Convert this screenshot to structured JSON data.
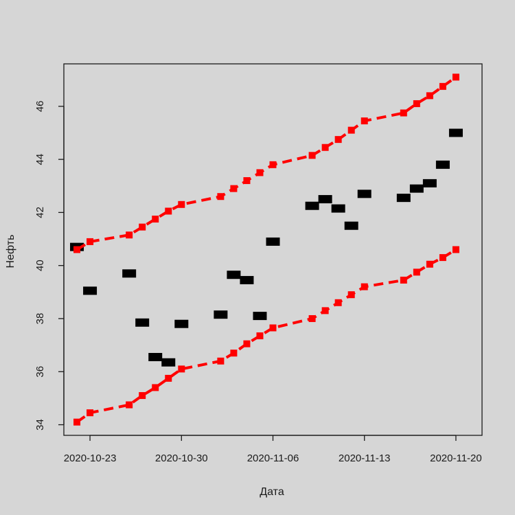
{
  "chart_data": {
    "type": "scatter",
    "title": "",
    "xlabel": "Дата",
    "ylabel": "Нефть",
    "xlim": [
      "2020-10-21",
      "2020-11-22"
    ],
    "ylim": [
      33.6,
      47.6
    ],
    "x_ticks": [
      "2020-10-23",
      "2020-10-30",
      "2020-11-06",
      "2020-11-13",
      "2020-11-20"
    ],
    "y_ticks": [
      34,
      36,
      38,
      40,
      42,
      44,
      46
    ],
    "grid": false,
    "legend": "none",
    "background_color": "#d6d6d6",
    "series": [
      {
        "marker": "filled-square",
        "color": "#000000",
        "x": [
          "2020-10-22",
          "2020-10-23",
          "2020-10-26",
          "2020-10-27",
          "2020-10-28",
          "2020-10-29",
          "2020-10-30",
          "2020-11-02",
          "2020-11-03",
          "2020-11-04",
          "2020-11-05",
          "2020-11-06",
          "2020-11-09",
          "2020-11-10",
          "2020-11-11",
          "2020-11-12",
          "2020-11-13",
          "2020-11-16",
          "2020-11-17",
          "2020-11-18",
          "2020-11-19",
          "2020-11-20"
        ],
        "y": [
          40.7,
          39.05,
          39.7,
          37.85,
          36.55,
          36.35,
          37.8,
          38.15,
          39.65,
          39.45,
          38.1,
          40.9,
          42.25,
          42.5,
          42.15,
          41.5,
          42.7,
          42.55,
          42.9,
          43.1,
          43.8,
          45.0
        ]
      },
      {
        "marker": "filled-square",
        "line": "dashed",
        "color": "#ff0000",
        "x": [
          "2020-10-22",
          "2020-10-23",
          "2020-10-26",
          "2020-10-27",
          "2020-10-28",
          "2020-10-29",
          "2020-10-30",
          "2020-11-02",
          "2020-11-03",
          "2020-11-04",
          "2020-11-05",
          "2020-11-06",
          "2020-11-09",
          "2020-11-10",
          "2020-11-11",
          "2020-11-12",
          "2020-11-13",
          "2020-11-16",
          "2020-11-17",
          "2020-11-18",
          "2020-11-19",
          "2020-11-20"
        ],
        "y": [
          40.6,
          40.9,
          41.15,
          41.45,
          41.75,
          42.05,
          42.3,
          42.6,
          42.9,
          43.2,
          43.5,
          43.8,
          44.15,
          44.45,
          44.75,
          45.1,
          45.45,
          45.75,
          46.1,
          46.4,
          46.75,
          47.1
        ]
      },
      {
        "marker": "filled-square",
        "line": "dashed",
        "color": "#ff0000",
        "x": [
          "2020-10-22",
          "2020-10-23",
          "2020-10-26",
          "2020-10-27",
          "2020-10-28",
          "2020-10-29",
          "2020-10-30",
          "2020-11-02",
          "2020-11-03",
          "2020-11-04",
          "2020-11-05",
          "2020-11-06",
          "2020-11-09",
          "2020-11-10",
          "2020-11-11",
          "2020-11-12",
          "2020-11-13",
          "2020-11-16",
          "2020-11-17",
          "2020-11-18",
          "2020-11-19",
          "2020-11-20"
        ],
        "y": [
          34.1,
          34.45,
          34.75,
          35.1,
          35.4,
          35.75,
          36.1,
          36.4,
          36.7,
          37.05,
          37.35,
          37.65,
          38.0,
          38.3,
          38.6,
          38.9,
          39.2,
          39.45,
          39.75,
          40.05,
          40.3,
          40.6
        ]
      }
    ]
  }
}
